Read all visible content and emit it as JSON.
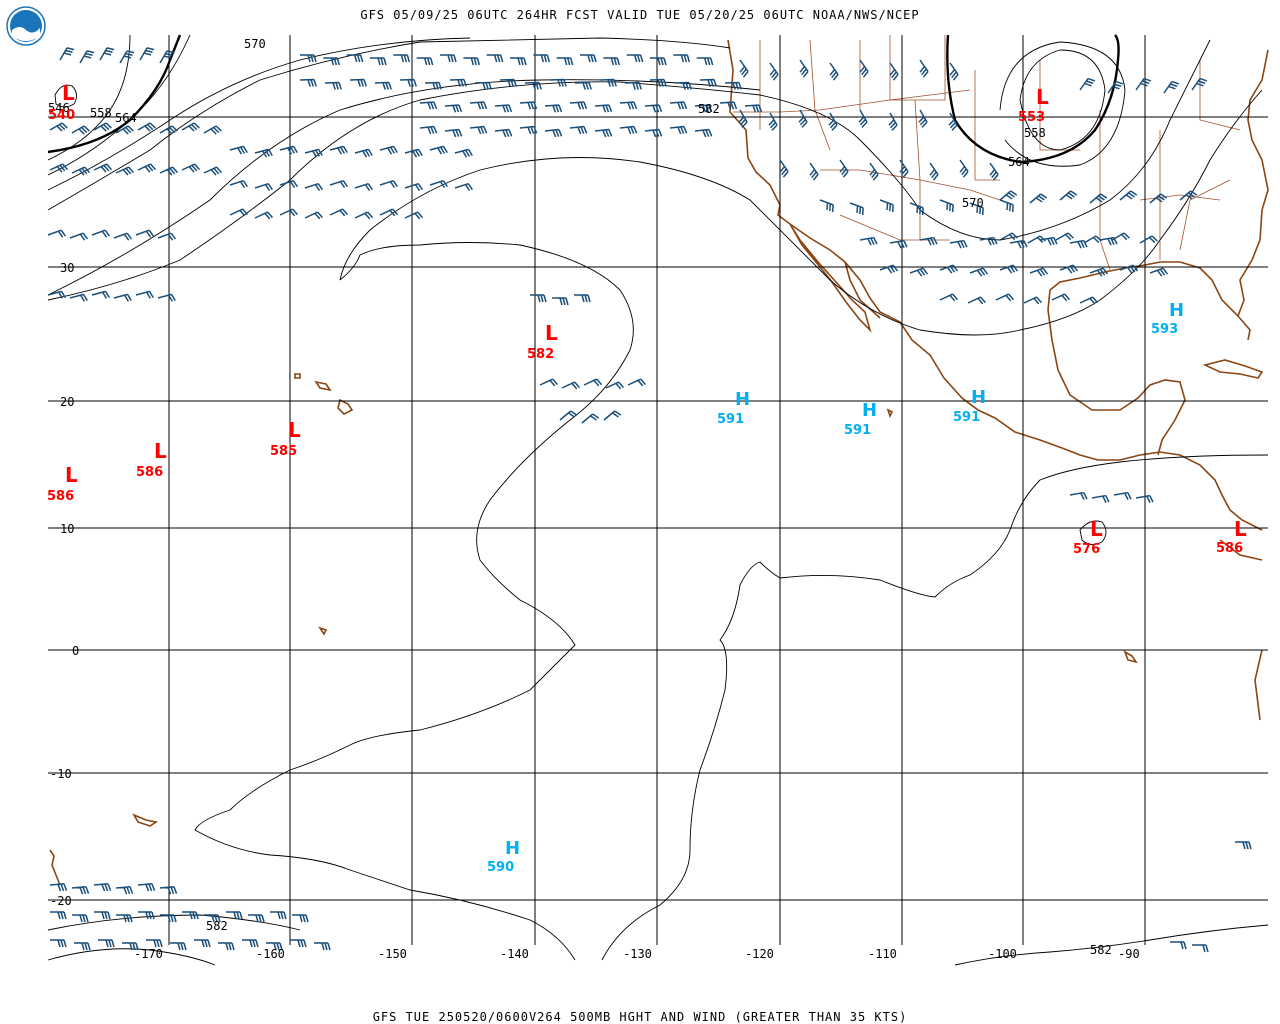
{
  "header": {
    "title": "GFS 05/09/25 06UTC 264HR FCST VALID TUE 05/20/25 06UTC NOAA/NWS/NCEP"
  },
  "footer": {
    "caption": "GFS TUE 250520/0600V264 500MB HGHT AND WIND (GREATER THAN 35 KTS)"
  },
  "logo": {
    "text": "NOAA"
  },
  "colors": {
    "low": "#ff0000",
    "high": "#00b0f0",
    "barb": "#1a4f7a",
    "coast": "#8b4513",
    "grid": "#000000"
  },
  "axes": {
    "lon_ticks": [
      "-170",
      "-160",
      "-150",
      "-140",
      "-130",
      "-120",
      "-110",
      "-100",
      "-90"
    ],
    "lat_ticks": [
      "30",
      "20",
      "10",
      "0",
      "-10",
      "-20"
    ]
  },
  "contour_labels": [
    "570",
    "582",
    "558",
    "564",
    "546",
    "558",
    "564",
    "570",
    "582",
    "582"
  ],
  "centers": [
    {
      "type": "L",
      "value": "540"
    },
    {
      "type": "L",
      "value": "582"
    },
    {
      "type": "L",
      "value": "585"
    },
    {
      "type": "L",
      "value": "586"
    },
    {
      "type": "L",
      "value": "586"
    },
    {
      "type": "L",
      "value": "553"
    },
    {
      "type": "L",
      "value": "576"
    },
    {
      "type": "L",
      "value": "586"
    },
    {
      "type": "H",
      "value": "591"
    },
    {
      "type": "H",
      "value": "591"
    },
    {
      "type": "H",
      "value": "591"
    },
    {
      "type": "H",
      "value": "593"
    },
    {
      "type": "H",
      "value": "590"
    }
  ]
}
